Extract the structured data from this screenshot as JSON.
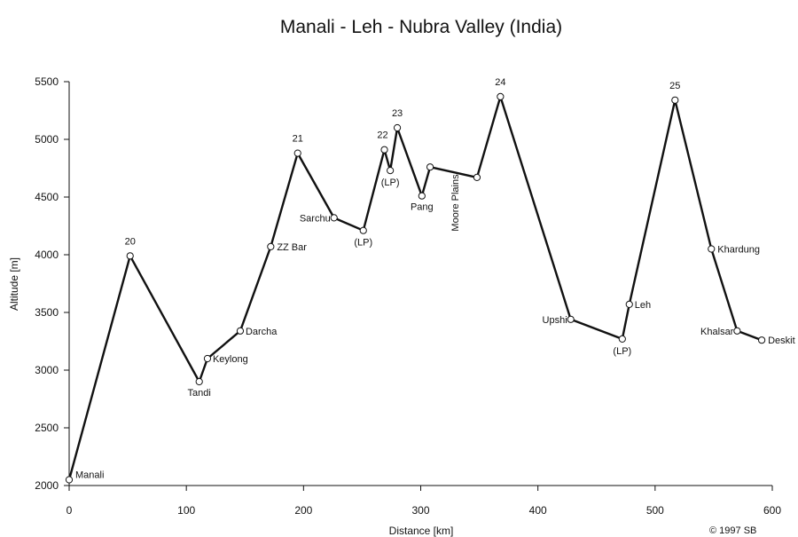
{
  "chart_data": {
    "type": "line",
    "title": "Manali - Leh - Nubra Valley (India)",
    "xlabel": "Distance [km]",
    "ylabel": "Altitude [m]",
    "xlim": [
      0,
      600
    ],
    "ylim": [
      2000,
      5500
    ],
    "xticks": [
      "0",
      "100",
      "200",
      "300",
      "400",
      "500",
      "600"
    ],
    "yticks": [
      "2000",
      "2500",
      "3000",
      "3500",
      "4000",
      "4500",
      "5000",
      "5500"
    ],
    "grid": false,
    "series": [
      {
        "points": [
          {
            "x": 0,
            "y": 2050,
            "label": "Manali"
          },
          {
            "x": 52,
            "y": 3990,
            "label": "20"
          },
          {
            "x": 111,
            "y": 2900,
            "label": "Tandi"
          },
          {
            "x": 118,
            "y": 3100,
            "label": "Keylong"
          },
          {
            "x": 146,
            "y": 3340,
            "label": "Darcha"
          },
          {
            "x": 172,
            "y": 4070,
            "label": "ZZ Bar"
          },
          {
            "x": 195,
            "y": 4880,
            "label": "21"
          },
          {
            "x": 226,
            "y": 4320,
            "label": "Sarchu"
          },
          {
            "x": 251,
            "y": 4210,
            "label": "(LP)"
          },
          {
            "x": 269,
            "y": 4910,
            "label": "22"
          },
          {
            "x": 274,
            "y": 4730,
            "label": "(LP)"
          },
          {
            "x": 280,
            "y": 5100,
            "label": "23"
          },
          {
            "x": 301,
            "y": 4510,
            "label": "Pang"
          },
          {
            "x": 308,
            "y": 4760,
            "label": ""
          },
          {
            "x": 348,
            "y": 4670,
            "label": ""
          },
          {
            "x": 368,
            "y": 5370,
            "label": "24"
          },
          {
            "x": 428,
            "y": 3440,
            "label": "Upshi"
          },
          {
            "x": 472,
            "y": 3270,
            "label": "(LP)"
          },
          {
            "x": 478,
            "y": 3570,
            "label": "Leh"
          },
          {
            "x": 517,
            "y": 5340,
            "label": "25"
          },
          {
            "x": 548,
            "y": 4050,
            "label": "Khardung"
          },
          {
            "x": 570,
            "y": 3340,
            "label": "Khalsar"
          },
          {
            "x": 591,
            "y": 3260,
            "label": "Deskit"
          }
        ]
      }
    ],
    "annotations": [
      {
        "text": "Moore Plains",
        "x": 329,
        "y": 4450
      }
    ]
  },
  "copyright": "© 1997 SB"
}
